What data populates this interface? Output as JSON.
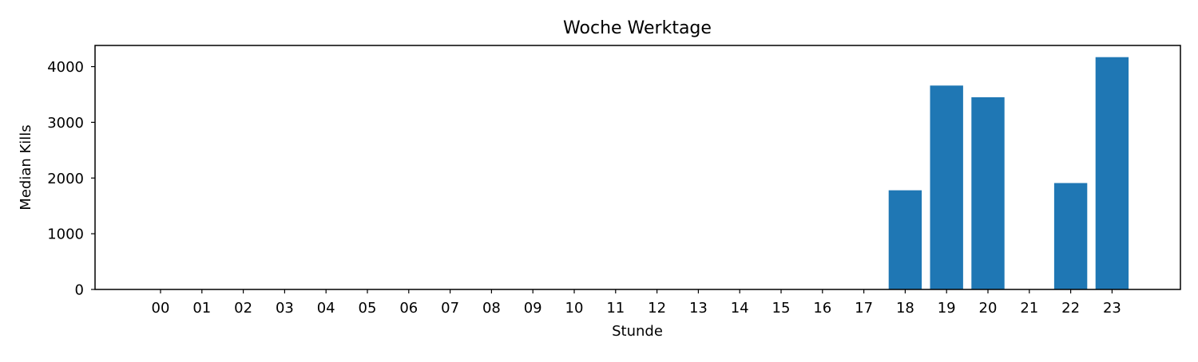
{
  "chart_data": {
    "type": "bar",
    "title": "Woche Werktage",
    "xlabel": "Stunde",
    "ylabel": "Median Kills",
    "categories": [
      "00",
      "01",
      "02",
      "03",
      "04",
      "05",
      "06",
      "07",
      "08",
      "09",
      "10",
      "11",
      "12",
      "13",
      "14",
      "15",
      "16",
      "17",
      "18",
      "19",
      "20",
      "21",
      "22",
      "23"
    ],
    "values": [
      0,
      0,
      0,
      0,
      0,
      0,
      0,
      0,
      0,
      0,
      0,
      0,
      0,
      0,
      0,
      0,
      0,
      0,
      1780,
      3660,
      3450,
      0,
      1910,
      4170
    ],
    "ylim": [
      0,
      4380
    ],
    "yticks": [
      0,
      1000,
      2000,
      3000,
      4000
    ],
    "grid": false,
    "colors": {
      "bar": "#1f77b4",
      "axis": "#000000"
    }
  }
}
